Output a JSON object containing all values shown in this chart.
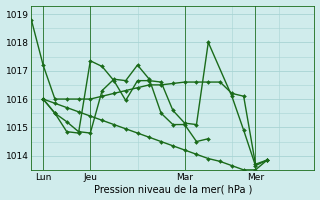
{
  "background_color": "#d0ecec",
  "grid_color": "#a8d4d4",
  "line_color": "#1a6b1a",
  "xlabel": "Pression niveau de la mer( hPa )",
  "ylim": [
    1013.5,
    1019.3
  ],
  "yticks": [
    1014,
    1015,
    1016,
    1017,
    1018,
    1019
  ],
  "xtick_labels": [
    "Lun",
    "Jeu",
    "Mar",
    "Mer"
  ],
  "xtick_positions": [
    1,
    5,
    13,
    19
  ],
  "vlines": [
    1,
    5,
    13,
    19
  ],
  "xlim": [
    0,
    24
  ],
  "lines": [
    {
      "x": [
        0,
        1,
        2,
        3,
        4,
        5,
        6,
        7,
        8,
        9,
        10,
        11,
        12,
        13,
        14,
        15,
        16,
        17,
        18,
        19,
        20
      ],
      "y": [
        1018.8,
        1017.2,
        1016.0,
        1016.0,
        1016.0,
        1016.0,
        1016.1,
        1016.2,
        1016.3,
        1016.4,
        1016.5,
        1016.5,
        1016.55,
        1016.6,
        1016.6,
        1016.6,
        1016.6,
        1016.2,
        1016.1,
        1013.7,
        1013.85
      ]
    },
    {
      "x": [
        1,
        2,
        3,
        4,
        5,
        6,
        7,
        8,
        9,
        10,
        11,
        12,
        13,
        14,
        15,
        17,
        18,
        19,
        20
      ],
      "y": [
        1016.0,
        1015.5,
        1014.85,
        1014.8,
        1017.35,
        1017.15,
        1016.65,
        1015.95,
        1016.65,
        1016.65,
        1016.6,
        1015.6,
        1015.15,
        1015.1,
        1018.0,
        1016.1,
        1014.9,
        1013.65,
        1013.85
      ]
    },
    {
      "x": [
        1,
        2,
        3,
        4,
        5,
        6,
        7,
        8,
        9,
        10,
        11,
        12,
        13,
        14,
        15
      ],
      "y": [
        1016.0,
        1015.5,
        1015.2,
        1014.85,
        1014.8,
        1016.3,
        1016.7,
        1016.65,
        1017.2,
        1016.7,
        1015.5,
        1015.1,
        1015.1,
        1014.5,
        1014.6
      ]
    },
    {
      "x": [
        1,
        2,
        3,
        4,
        5,
        6,
        7,
        8,
        9,
        10,
        11,
        12,
        13,
        14,
        15,
        16,
        17,
        18,
        19,
        20
      ],
      "y": [
        1016.0,
        1015.85,
        1015.7,
        1015.55,
        1015.4,
        1015.25,
        1015.1,
        1014.95,
        1014.8,
        1014.65,
        1014.5,
        1014.35,
        1014.2,
        1014.05,
        1013.9,
        1013.8,
        1013.65,
        1013.5,
        1013.5,
        1013.85
      ]
    }
  ],
  "marker": "D",
  "markersize": 2.0,
  "linewidth": 1.0,
  "figsize": [
    3.2,
    2.0
  ],
  "dpi": 100
}
